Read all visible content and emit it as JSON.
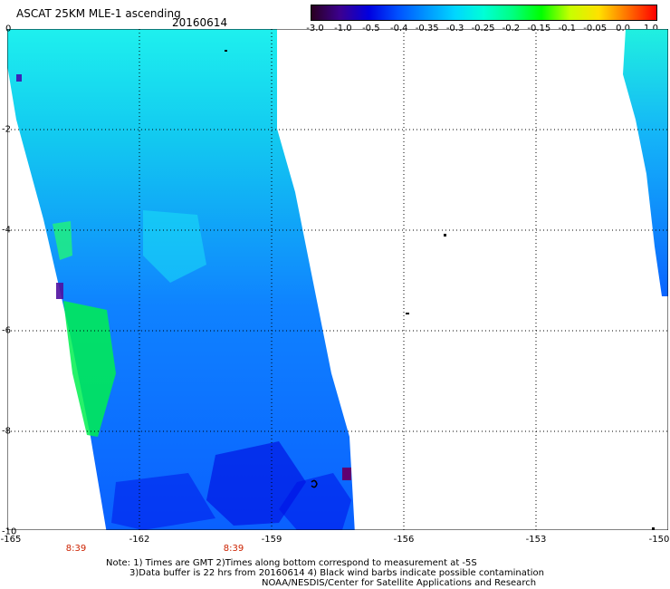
{
  "header": {
    "title": "ASCAT 25KM MLE-1 ascending",
    "date": "20160614"
  },
  "colorbar": {
    "labels": [
      "-3.0",
      "-1.0",
      "-0.5",
      "-0.4",
      "-0.35",
      "-0.3",
      "-0.25",
      "-0.2",
      "-0.15",
      "-0.1",
      "-0.05",
      "0.0",
      "1.0"
    ],
    "colors": [
      "#2a0020",
      "#3c0090",
      "#0000e0",
      "#0050ff",
      "#0096ff",
      "#00d6ff",
      "#00ffd6",
      "#00ff80",
      "#00ff00",
      "#c8ff00",
      "#ffe000",
      "#ff7000",
      "#ff0000"
    ]
  },
  "axes": {
    "lat_labels": [
      "0",
      "-2",
      "-4",
      "-6",
      "-8",
      "-10"
    ],
    "lon_labels": [
      "-165",
      "-162",
      "-159",
      "-156",
      "-153",
      "-150"
    ],
    "time_labels": [
      "8:39",
      "8:39"
    ]
  },
  "notes": {
    "line1": "Note: 1) Times are GMT 2)Times along bottom correspond to measurement at -5S",
    "line2": "3)Data buffer is 22 hrs from 20160614 4) Black wind barbs indicate possible contamination",
    "line3": "NOAA/NESDIS/Center for Satellite Applications and Research"
  }
}
